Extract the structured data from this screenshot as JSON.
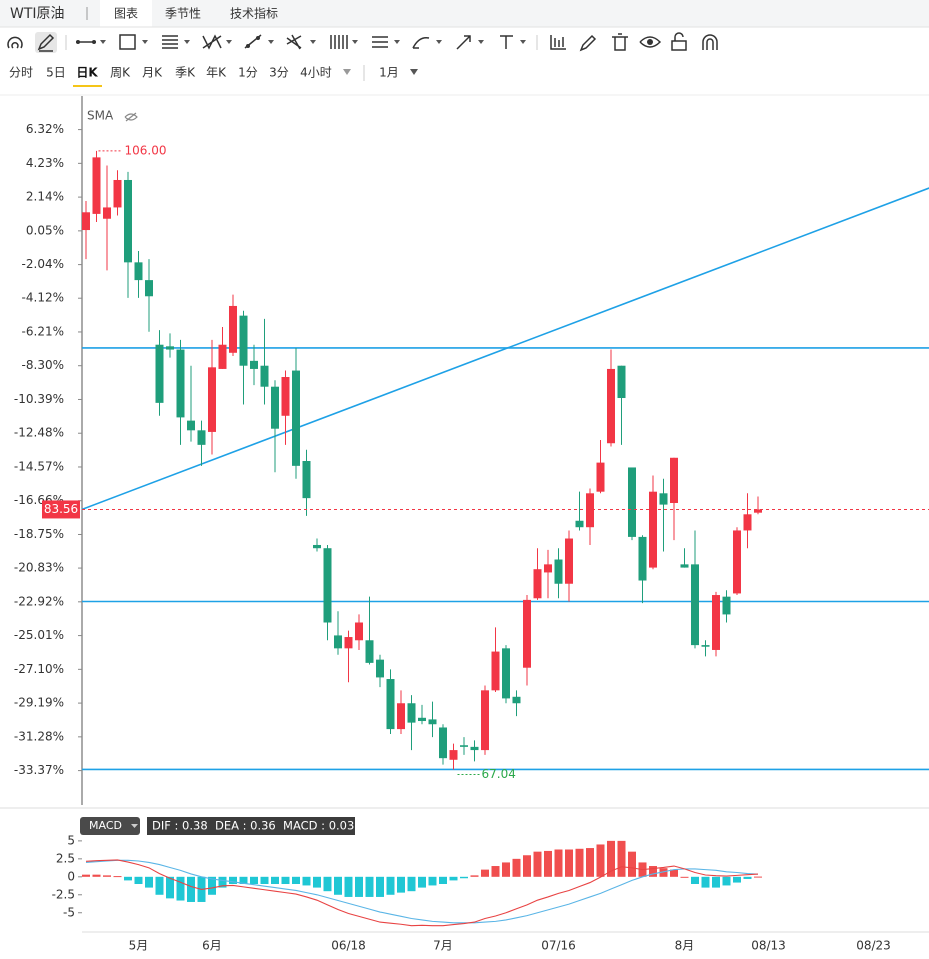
{
  "ui": {
    "symbol": "WTI原油",
    "tabs": [
      "图表",
      "季节性",
      "技术指标"
    ],
    "periods": [
      "分时",
      "5日",
      "日K",
      "周K",
      "月K",
      "季K",
      "年K",
      "1分",
      "3分",
      "4小时"
    ],
    "range": "1月"
  },
  "chart_data": [
    {
      "type": "candlestick",
      "indicator": "SMA",
      "categories": [
        null,
        null,
        null,
        null,
        null,
        "5月",
        null,
        null,
        null,
        null,
        null,
        null,
        "6月",
        null,
        null,
        null,
        null,
        null,
        null,
        null,
        null,
        null,
        null,
        null,
        null,
        "06/18",
        null,
        null,
        null,
        null,
        null,
        null,
        null,
        null,
        "7月",
        null,
        null,
        null,
        null,
        null,
        null,
        null,
        null,
        null,
        null,
        "07/16",
        null,
        null,
        null,
        null,
        null,
        null,
        null,
        null,
        null,
        null,
        null,
        "8月",
        null,
        null,
        null,
        null,
        null,
        null,
        null,
        "08/13",
        null,
        null,
        null,
        null,
        null,
        null,
        null,
        null,
        null,
        "08/23",
        null,
        null,
        null,
        null,
        null
      ],
      "open": [
        0.1,
        1.1,
        0.8,
        1.5,
        3.2,
        -1.9,
        -3.0,
        -7.0,
        -7.1,
        -7.3,
        -11.7,
        -12.3,
        -12.4,
        -8.5,
        -7.5,
        -5.2,
        -8.0,
        -8.3,
        -9.6,
        -11.4,
        -8.6,
        -14.2,
        -19.4,
        -19.6,
        -25.0,
        -25.8,
        -25.3,
        -25.3,
        -26.5,
        -27.7,
        -30.8,
        -29.2,
        -30.1,
        -30.2,
        -30.7,
        -32.7,
        -31.8,
        -31.9,
        -32.1,
        -28.4,
        -25.8,
        -28.8,
        -27.0,
        -22.7,
        -21.1,
        -20.3,
        -21.8,
        -17.9,
        -18.3,
        -16.1,
        -13.1,
        -8.3,
        -14.6,
        -18.9,
        -20.8,
        -16.2,
        -16.8,
        -20.6,
        -20.6,
        -25.6,
        -25.9,
        -22.6,
        -22.4,
        -18.5,
        -17.4,
        null,
        null,
        null,
        null,
        null,
        null,
        null,
        null,
        null,
        null,
        null,
        null,
        null,
        null,
        null,
        null
      ],
      "high": [
        1.9,
        5.0,
        4.1,
        3.8,
        3.7,
        -1.2,
        -1.7,
        -6.1,
        -6.3,
        -6.7,
        -8.3,
        -11.7,
        -6.7,
        -5.9,
        -3.9,
        -4.9,
        -7.0,
        -5.4,
        -9.2,
        -8.6,
        -7.2,
        -13.5,
        -19.0,
        -19.4,
        -23.5,
        -24.7,
        -23.7,
        -22.6,
        -26.2,
        -27.1,
        -28.4,
        -28.7,
        -29.3,
        -29.1,
        -30.5,
        -31.7,
        -31.3,
        -31.5,
        -28.1,
        -24.5,
        -25.6,
        -28.4,
        -22.5,
        -19.6,
        -19.7,
        -19.6,
        -18.5,
        -16.1,
        -15.9,
        -12.9,
        -7.3,
        -8.3,
        -14.6,
        -18.8,
        -15.1,
        -15.3,
        -14.0,
        -19.6,
        -18.5,
        -25.3,
        -22.3,
        -22.2,
        -18.3,
        -16.2,
        -16.4,
        null,
        null,
        null,
        null,
        null,
        null,
        null,
        null,
        null,
        null,
        null,
        null,
        null,
        null,
        null,
        null
      ],
      "low": [
        -1.7,
        0.6,
        -2.4,
        1.0,
        -4.1,
        -4.1,
        -6.2,
        -11.4,
        -7.8,
        -13.2,
        -13.0,
        -14.5,
        -13.8,
        -8.5,
        -7.7,
        -10.7,
        -9.5,
        -10.7,
        -14.9,
        -13.2,
        -15.3,
        -17.6,
        -19.8,
        -25.3,
        -26.2,
        -27.9,
        -25.9,
        -26.8,
        -28.2,
        -31.1,
        -31.1,
        -32.1,
        -30.5,
        -31.3,
        -33.0,
        -33.3,
        -32.4,
        -32.8,
        -32.4,
        -28.5,
        -29.2,
        -30.0,
        -28.1,
        -22.8,
        -22.7,
        -22.7,
        -22.9,
        -18.5,
        -19.4,
        -16.2,
        -13.3,
        -13.2,
        -19.1,
        -23.0,
        -20.9,
        -19.8,
        -19.1,
        -20.8,
        -25.8,
        -26.3,
        -26.3,
        -24.2,
        -22.5,
        -19.6,
        -17.5,
        null,
        null,
        null,
        null,
        null,
        null,
        null,
        null,
        null,
        null,
        null,
        null,
        null,
        null,
        null,
        null
      ],
      "close": [
        1.2,
        4.6,
        1.5,
        3.2,
        -1.9,
        -3.0,
        -4.0,
        -10.6,
        -7.3,
        -11.5,
        -12.3,
        -13.2,
        -8.4,
        -7.0,
        -4.6,
        -8.3,
        -8.5,
        -9.6,
        -12.2,
        -9.0,
        -14.5,
        -16.5,
        -19.6,
        -24.2,
        -25.8,
        -25.1,
        -24.2,
        -26.7,
        -27.6,
        -30.8,
        -29.2,
        -30.4,
        -30.3,
        -30.5,
        -32.6,
        -32.1,
        -31.9,
        -32.1,
        -28.4,
        -26.0,
        -28.9,
        -29.2,
        -22.8,
        -20.9,
        -20.6,
        -21.8,
        -19.0,
        -18.3,
        -16.2,
        -14.3,
        -8.5,
        -10.3,
        -18.9,
        -21.6,
        -16.1,
        -16.9,
        -14.0,
        -20.8,
        -25.6,
        -25.7,
        -22.5,
        -23.7,
        -18.5,
        -17.5,
        -17.2,
        null,
        null,
        null,
        null,
        null,
        null,
        null,
        null,
        null,
        null,
        null,
        null,
        null,
        null,
        null,
        null
      ],
      "up_color": "#f23645",
      "down_color": "#1f9e7b",
      "ylim": [
        -35.5,
        8.4
      ],
      "yticks": [
        {
          "value": 6.32,
          "label": "6.32%"
        },
        {
          "value": 4.23,
          "label": "4.23%"
        },
        {
          "value": 2.14,
          "label": "2.14%"
        },
        {
          "value": 0.05,
          "label": "0.05%"
        },
        {
          "value": -2.04,
          "label": "-2.04%"
        },
        {
          "value": -4.12,
          "label": "-4.12%"
        },
        {
          "value": -6.21,
          "label": "-6.21%"
        },
        {
          "value": -8.3,
          "label": "-8.30%"
        },
        {
          "value": -10.39,
          "label": "-10.39%"
        },
        {
          "value": -12.48,
          "label": "-12.48%"
        },
        {
          "value": -14.57,
          "label": "-14.57%"
        },
        {
          "value": -16.66,
          "label": "-16.66%"
        },
        {
          "value": -18.75,
          "label": "-18.75%"
        },
        {
          "value": -20.83,
          "label": "-20.83%"
        },
        {
          "value": -22.92,
          "label": "-22.92%"
        },
        {
          "value": -25.01,
          "label": "-25.01%"
        },
        {
          "value": -27.1,
          "label": "-27.10%"
        },
        {
          "value": -29.19,
          "label": "-29.19%"
        },
        {
          "value": -31.28,
          "label": "-31.28%"
        },
        {
          "value": -33.37,
          "label": "-33.37%"
        }
      ],
      "hlines": [
        -7.2,
        -22.9,
        -33.3
      ],
      "line_color": "#1ea1e6",
      "trendline": {
        "x": [
          -0.4,
          80.3
        ],
        "y": [
          -17.2,
          2.7
        ]
      },
      "high_label": "106.00",
      "low_label": "67.04",
      "last_price_label": "83.56"
    },
    {
      "type": "macd",
      "label": "MACD",
      "legend": "DIF : 0.38  DEA : 0.36  MACD : 0.03",
      "histogram": [
        0.3,
        0.3,
        0.2,
        0.1,
        -0.5,
        -1.0,
        -1.5,
        -2.5,
        -3.0,
        -3.3,
        -3.5,
        -3.5,
        -2.5,
        -1.5,
        -1.0,
        -1.0,
        -1.0,
        -1.0,
        -1.0,
        -1.0,
        -1.0,
        -1.2,
        -1.5,
        -2.0,
        -2.5,
        -2.8,
        -2.8,
        -2.8,
        -2.8,
        -2.5,
        -2.2,
        -2.0,
        -1.5,
        -1.2,
        -1.0,
        -0.5,
        -0.2,
        0.2,
        1.0,
        1.5,
        2.0,
        2.5,
        3.0,
        3.5,
        3.6,
        3.8,
        3.8,
        3.9,
        4.0,
        4.5,
        5.0,
        5.0,
        3.5,
        2.0,
        1.5,
        1.2,
        1.0,
        0.0,
        -1.0,
        -1.5,
        -1.5,
        -1.2,
        -0.8,
        -0.3,
        0.03,
        null,
        null,
        null,
        null,
        null,
        null,
        null,
        null,
        null,
        null,
        null,
        null,
        null,
        null,
        null,
        null
      ],
      "dif": [
        2.15,
        2.25,
        2.3,
        2.35,
        2.05,
        1.7,
        1.25,
        0.45,
        -0.2,
        -0.75,
        -1.35,
        -1.75,
        -1.55,
        -1.25,
        -1.2,
        -1.4,
        -1.6,
        -1.8,
        -2.0,
        -2.2,
        -2.4,
        -2.8,
        -3.25,
        -3.9,
        -4.55,
        -5.1,
        -5.5,
        -5.9,
        -6.3,
        -6.45,
        -6.6,
        -6.8,
        -6.75,
        -6.8,
        -6.8,
        -6.65,
        -6.5,
        -6.3,
        -5.8,
        -5.45,
        -5.0,
        -4.45,
        -3.9,
        -3.25,
        -2.8,
        -2.3,
        -1.9,
        -1.35,
        -0.8,
        -0.05,
        0.8,
        1.4,
        1.25,
        1.0,
        1.15,
        1.3,
        1.5,
        1.1,
        0.6,
        0.25,
        0.15,
        0.1,
        0.2,
        0.3,
        0.38,
        null,
        null,
        null,
        null,
        null,
        null,
        null,
        null,
        null,
        null,
        null,
        null,
        null,
        null,
        null,
        null
      ],
      "dea": [
        2.0,
        2.1,
        2.2,
        2.3,
        2.3,
        2.2,
        2.0,
        1.7,
        1.3,
        0.9,
        0.4,
        0.0,
        -0.3,
        -0.5,
        -0.7,
        -0.9,
        -1.1,
        -1.3,
        -1.5,
        -1.7,
        -1.9,
        -2.2,
        -2.5,
        -2.9,
        -3.3,
        -3.7,
        -4.1,
        -4.5,
        -4.9,
        -5.2,
        -5.5,
        -5.8,
        -6.0,
        -6.2,
        -6.3,
        -6.4,
        -6.4,
        -6.4,
        -6.3,
        -6.2,
        -6.0,
        -5.7,
        -5.4,
        -5.0,
        -4.6,
        -4.2,
        -3.8,
        -3.3,
        -2.8,
        -2.3,
        -1.7,
        -1.1,
        -0.5,
        0.0,
        0.4,
        0.7,
        1.0,
        1.1,
        1.1,
        1.0,
        0.9,
        0.7,
        0.6,
        0.45,
        0.36,
        null,
        null,
        null,
        null,
        null,
        null,
        null,
        null,
        null,
        null,
        null,
        null,
        null,
        null,
        null,
        null
      ],
      "dif_color": "#e84343",
      "dea_color": "#5ab5e6",
      "pos_color": "#f04e4e",
      "neg_color": "#1fc7d4",
      "ylim": [
        -7.4,
        8.6
      ],
      "yticks": [
        5,
        2.5,
        0,
        -2.5,
        -5
      ]
    }
  ]
}
